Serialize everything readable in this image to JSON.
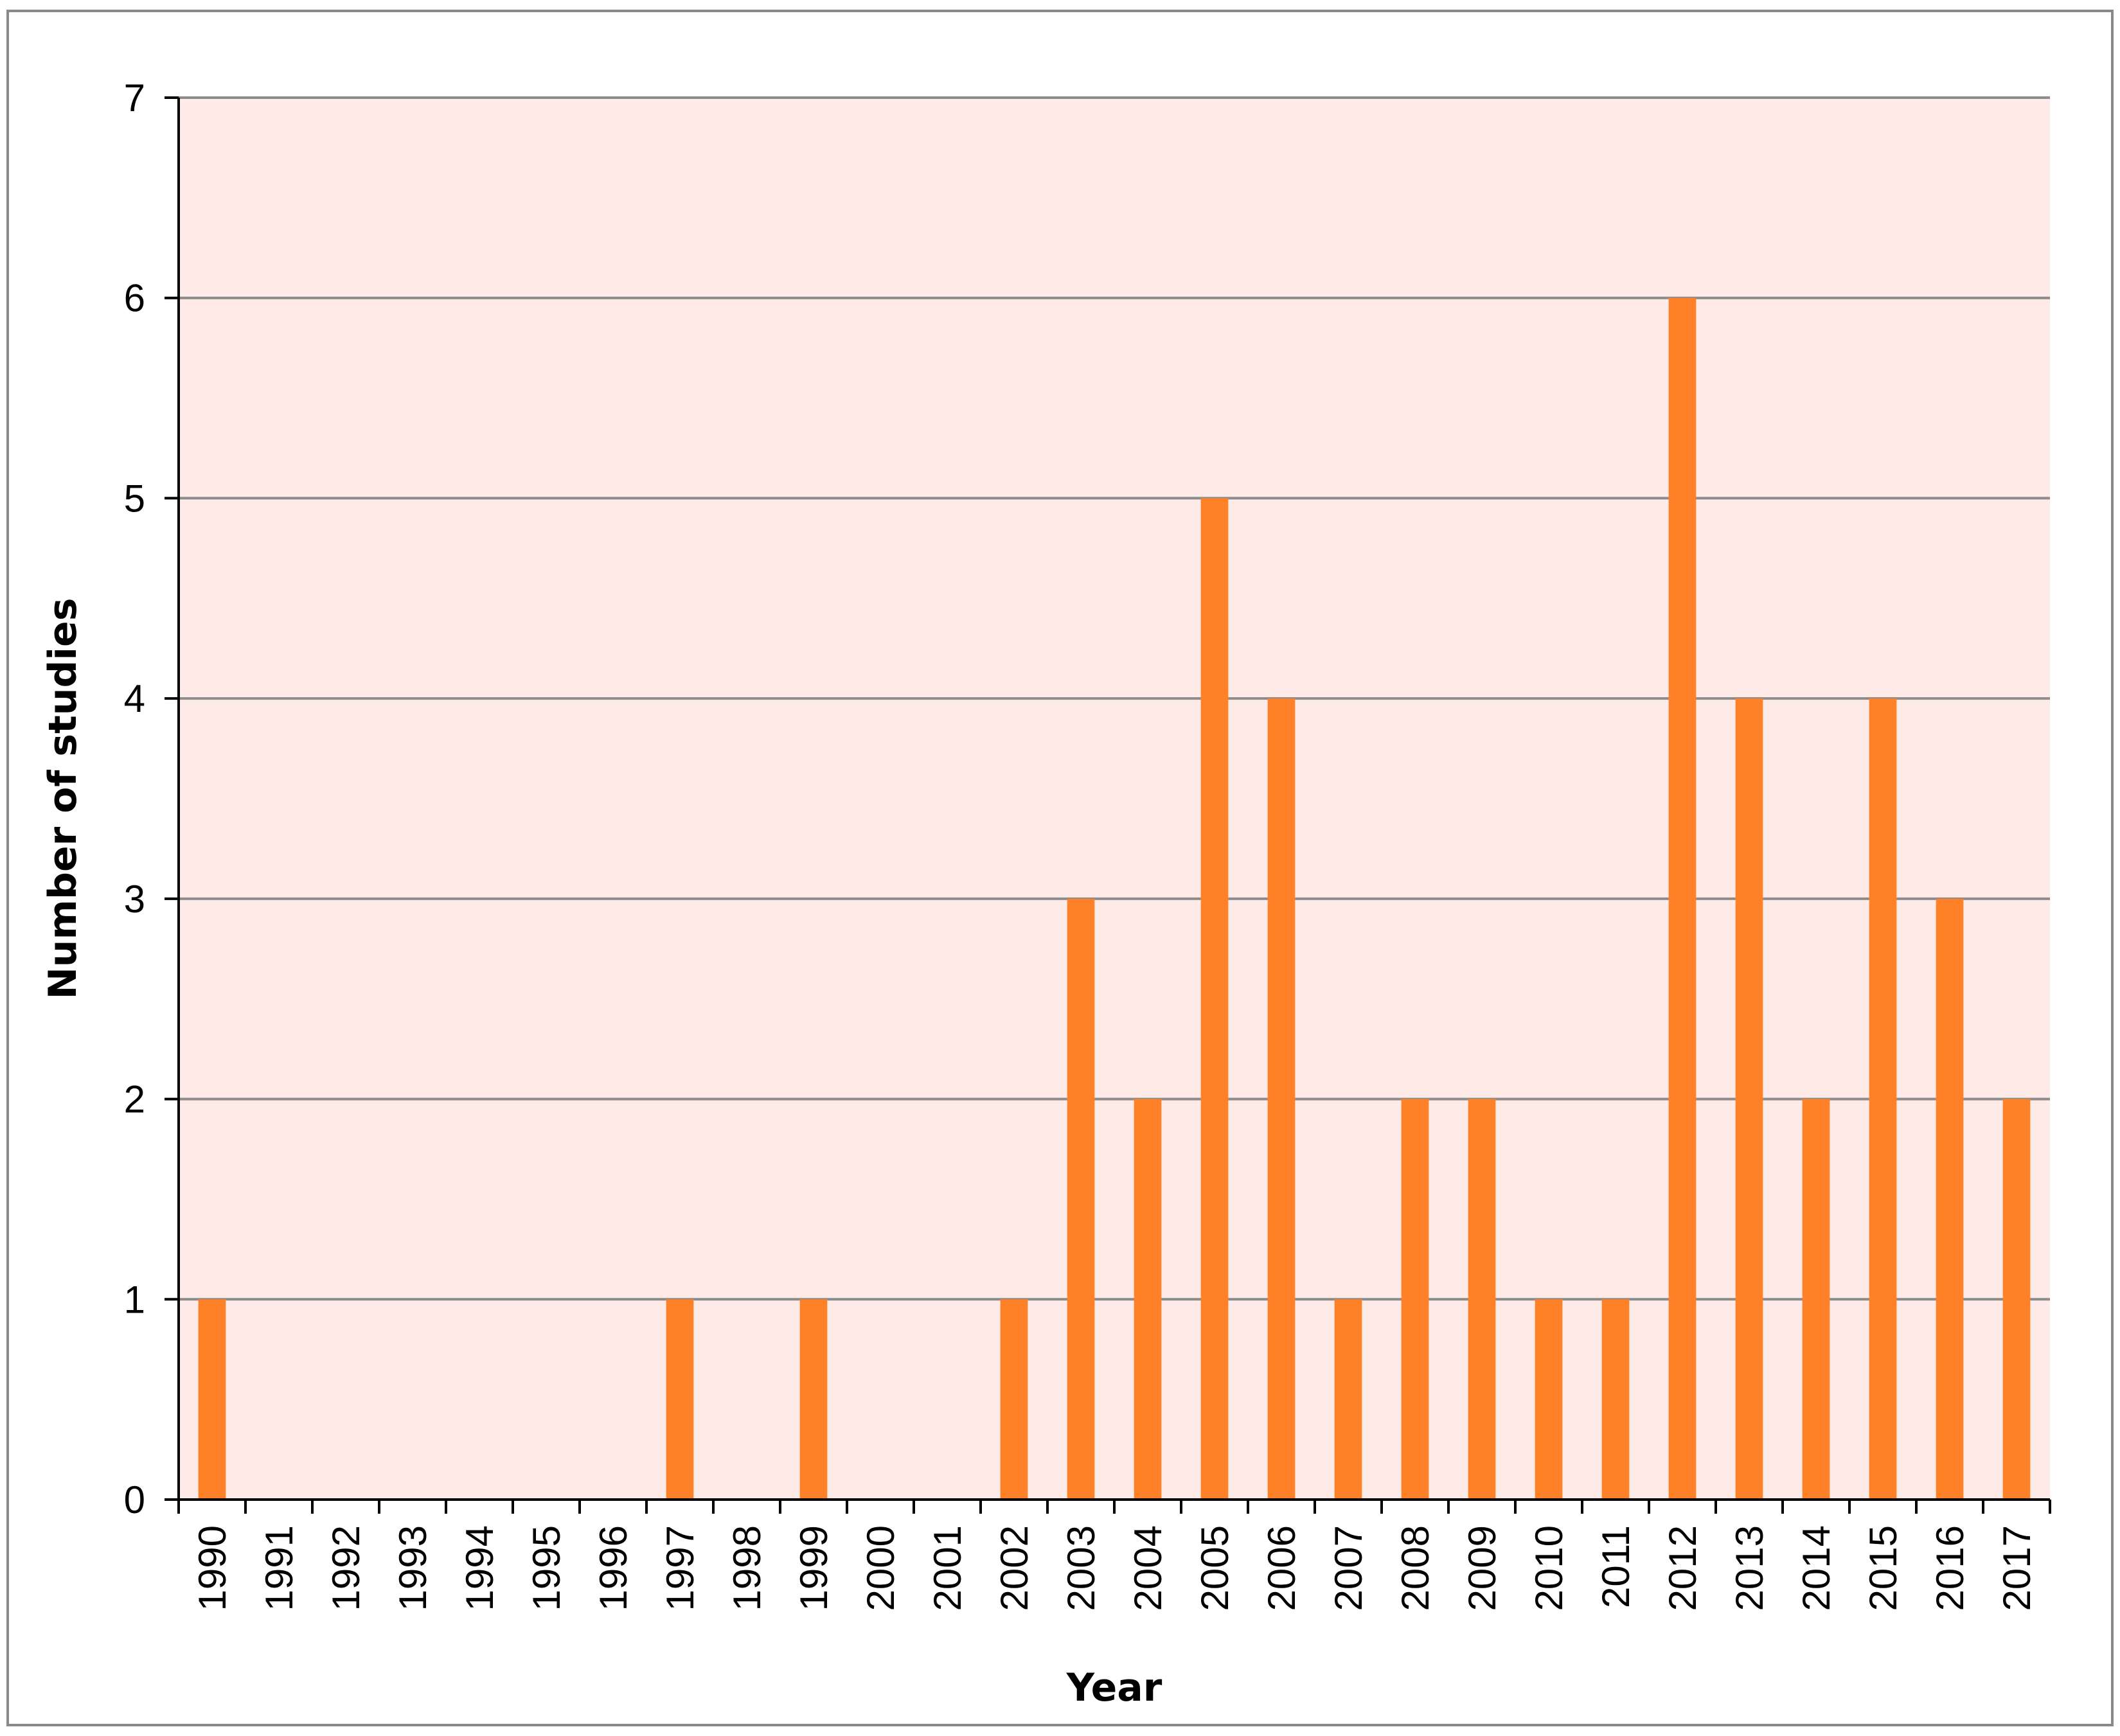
{
  "chart_data": {
    "type": "bar",
    "title": "",
    "xlabel": "Year",
    "ylabel": "Number of studies",
    "ylim": [
      0,
      7
    ],
    "yticks": [
      0,
      1,
      2,
      3,
      4,
      5,
      6,
      7
    ],
    "categories": [
      "1990",
      "1991",
      "1992",
      "1993",
      "1994",
      "1995",
      "1996",
      "1997",
      "1998",
      "1999",
      "2000",
      "2001",
      "2002",
      "2003",
      "2004",
      "2005",
      "2006",
      "2007",
      "2008",
      "2009",
      "2010",
      "2011",
      "2012",
      "2013",
      "2014",
      "2015",
      "2016",
      "2017"
    ],
    "values": [
      1,
      0,
      0,
      0,
      0,
      0,
      0,
      1,
      0,
      1,
      0,
      0,
      1,
      3,
      2,
      5,
      4,
      1,
      2,
      2,
      1,
      1,
      6,
      4,
      2,
      4,
      3,
      2
    ],
    "grid": true,
    "legend": "none",
    "colors": {
      "bar": "#FF8127",
      "plot_background": "#FEEBE8",
      "gridline": "#8C8C8C",
      "axis": "#000000",
      "frame": "#8A8A8A"
    }
  }
}
